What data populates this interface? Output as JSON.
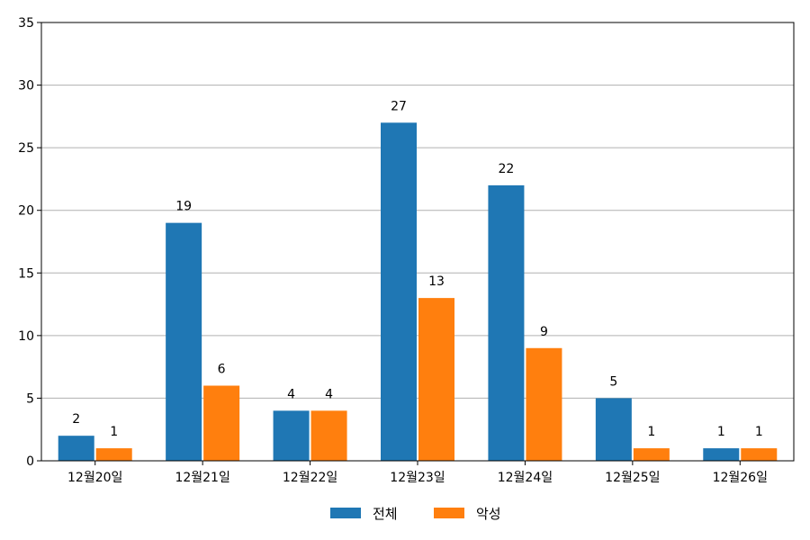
{
  "chart_data": {
    "type": "bar",
    "categories": [
      "12월20일",
      "12월21일",
      "12월22일",
      "12월23일",
      "12월24일",
      "12월25일",
      "12월26일"
    ],
    "series": [
      {
        "name": "전체",
        "color": "#1f77b4",
        "values": [
          2,
          19,
          4,
          27,
          22,
          5,
          1
        ]
      },
      {
        "name": "악성",
        "color": "#ff7f0e",
        "values": [
          1,
          6,
          4,
          13,
          9,
          1,
          1
        ]
      }
    ],
    "ylim": [
      0,
      35
    ],
    "yticks": [
      "0",
      "5",
      "10",
      "15",
      "20",
      "25",
      "30",
      "35"
    ],
    "grid": true,
    "legend": "bottom-center"
  }
}
